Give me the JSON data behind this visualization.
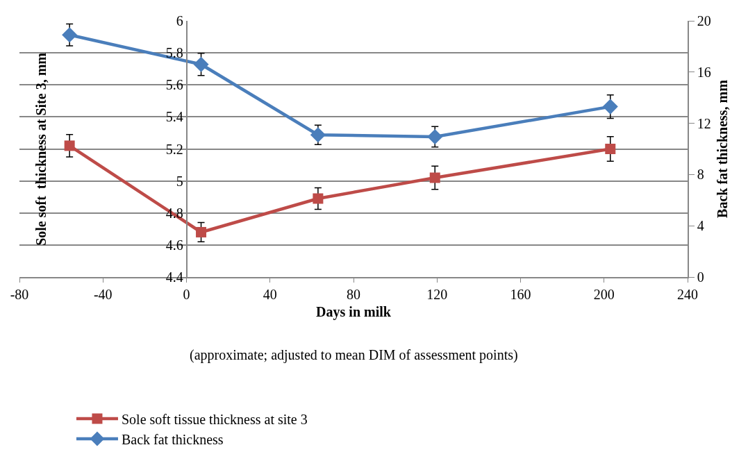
{
  "chart_data": {
    "type": "line",
    "xlabel": "Days in milk",
    "ylabel": "Sole soft  thickness at Site 3, mm",
    "y2label": "Back fat thickness, mm",
    "annotations": [
      "(approximate; adjusted to mean DIM of assessment points)"
    ],
    "series": [
      {
        "name": "Sole soft tissue thickness at site 3",
        "color": "#be4b48",
        "marker": "square",
        "x": [
          -56,
          7,
          63,
          119,
          203
        ],
        "values": [
          5.22,
          4.68,
          4.89,
          5.02,
          5.2
        ],
        "errors": [
          0.07,
          0.06,
          0.067,
          0.073,
          0.077
        ]
      },
      {
        "name": "Back fat thickness",
        "color": "#4a7ebb",
        "marker": "diamond",
        "axis": "y2",
        "x": [
          -56,
          7,
          63,
          119,
          203
        ],
        "values": [
          18.9,
          16.6,
          11.1,
          10.95,
          13.3
        ],
        "errors": [
          0.85,
          0.87,
          0.76,
          0.8,
          0.92
        ]
      }
    ],
    "xlim": [
      -80,
      240
    ],
    "xticks": [
      -80,
      -40,
      0,
      40,
      80,
      120,
      160,
      200,
      240
    ],
    "ylim": [
      4.4,
      6
    ],
    "yticks": [
      4.4,
      4.6,
      4.8,
      5,
      5.2,
      5.4,
      5.6,
      5.8,
      6
    ],
    "y2lim": [
      0,
      20
    ],
    "y2ticks": [
      0,
      4,
      8,
      12,
      16,
      20
    ],
    "grid": "y",
    "legend": "bottom",
    "line_style": "solid"
  }
}
